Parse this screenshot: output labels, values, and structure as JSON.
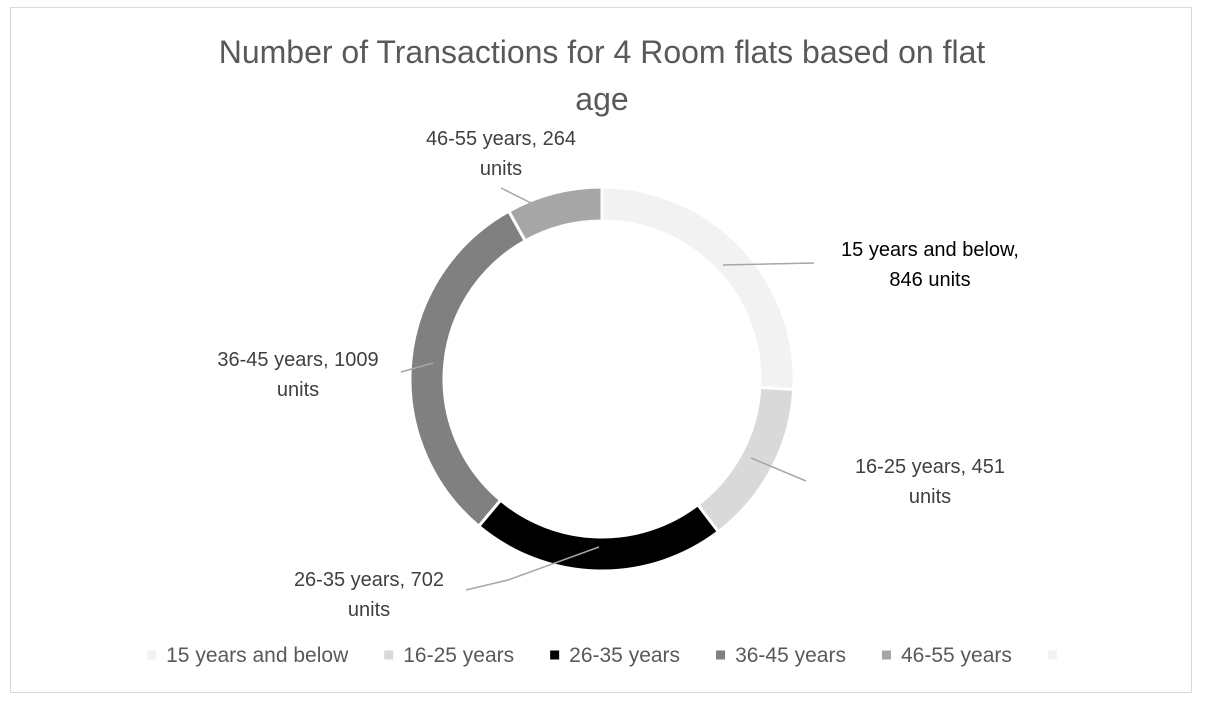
{
  "chart_data": {
    "type": "pie",
    "variant": "doughnut",
    "title_lines": [
      "Number of Transactions for 4 Room flats based on flat",
      "age"
    ],
    "start_angle_deg": 0,
    "direction": "clockwise",
    "slices": [
      {
        "category": "15 years and below",
        "value": 846,
        "color": "#f2f2f2",
        "label_lines": [
          "15 years and below,",
          "846 units"
        ],
        "label_color": "#000000",
        "label_anchor": "middle"
      },
      {
        "category": "16-25 years",
        "value": 451,
        "color": "#d9d9d9",
        "label_lines": [
          "16-25 years, 451",
          "units"
        ],
        "label_color": "#404040",
        "label_anchor": "middle"
      },
      {
        "category": "26-35 years",
        "value": 702,
        "color": "#000000",
        "label_lines": [
          "26-35 years, 702",
          "units"
        ],
        "label_color": "#404040",
        "label_anchor": "middle"
      },
      {
        "category": "36-45 years",
        "value": 1009,
        "color": "#808080",
        "label_lines": [
          "36-45 years, 1009",
          "units"
        ],
        "label_color": "#404040",
        "label_anchor": "middle"
      },
      {
        "category": "46-55 years",
        "value": 264,
        "color": "#a6a6a6",
        "label_lines": [
          "46-55 years, 264",
          "units"
        ],
        "label_color": "#404040",
        "label_anchor": "middle"
      }
    ],
    "legend": {
      "placement": "bottom",
      "entries": [
        {
          "label": "15 years and below",
          "color": "#f2f2f2"
        },
        {
          "label": "16-25 years",
          "color": "#d9d9d9"
        },
        {
          "label": "26-35 years",
          "color": "#000000"
        },
        {
          "label": "36-45 years",
          "color": "#808080"
        },
        {
          "label": "46-55 years",
          "color": "#a6a6a6"
        },
        {
          "label": "",
          "color": "#f2f2f2"
        }
      ]
    }
  }
}
